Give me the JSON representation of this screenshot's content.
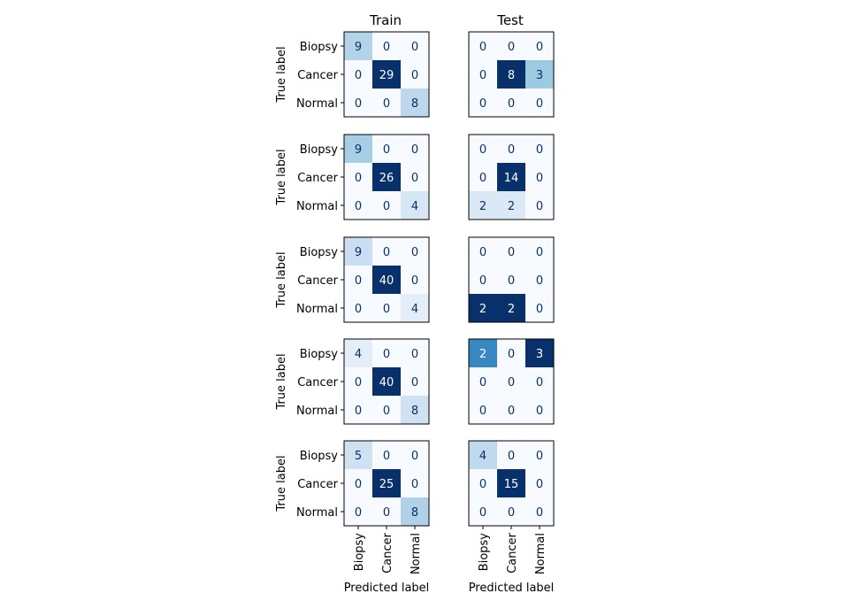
{
  "columns": [
    {
      "title": "Train"
    },
    {
      "title": "Test"
    }
  ],
  "class_labels": [
    "Biopsy",
    "Cancer",
    "Normal"
  ],
  "ylabel": "True label",
  "xlabel": "Predicted label",
  "chart_data": [
    {
      "type": "heatmap",
      "title": "Train",
      "row": 1,
      "x_categories": [
        "Biopsy",
        "Cancer",
        "Normal"
      ],
      "y_categories": [
        "Biopsy",
        "Cancer",
        "Normal"
      ],
      "values": [
        [
          9,
          0,
          0
        ],
        [
          0,
          29,
          0
        ],
        [
          0,
          0,
          8
        ]
      ],
      "colormap": "Blues"
    },
    {
      "type": "heatmap",
      "title": "Test",
      "row": 1,
      "x_categories": [
        "Biopsy",
        "Cancer",
        "Normal"
      ],
      "y_categories": [
        "Biopsy",
        "Cancer",
        "Normal"
      ],
      "values": [
        [
          0,
          0,
          0
        ],
        [
          0,
          8,
          3
        ],
        [
          0,
          0,
          0
        ]
      ],
      "colormap": "Blues"
    },
    {
      "type": "heatmap",
      "title": "Train",
      "row": 2,
      "x_categories": [
        "Biopsy",
        "Cancer",
        "Normal"
      ],
      "y_categories": [
        "Biopsy",
        "Cancer",
        "Normal"
      ],
      "values": [
        [
          9,
          0,
          0
        ],
        [
          0,
          26,
          0
        ],
        [
          0,
          0,
          4
        ]
      ],
      "colormap": "Blues"
    },
    {
      "type": "heatmap",
      "title": "Test",
      "row": 2,
      "x_categories": [
        "Biopsy",
        "Cancer",
        "Normal"
      ],
      "y_categories": [
        "Biopsy",
        "Cancer",
        "Normal"
      ],
      "values": [
        [
          0,
          0,
          0
        ],
        [
          0,
          14,
          0
        ],
        [
          2,
          2,
          0
        ]
      ],
      "colormap": "Blues"
    },
    {
      "type": "heatmap",
      "title": "Train",
      "row": 3,
      "x_categories": [
        "Biopsy",
        "Cancer",
        "Normal"
      ],
      "y_categories": [
        "Biopsy",
        "Cancer",
        "Normal"
      ],
      "values": [
        [
          9,
          0,
          0
        ],
        [
          0,
          40,
          0
        ],
        [
          0,
          0,
          4
        ]
      ],
      "colormap": "Blues"
    },
    {
      "type": "heatmap",
      "title": "Test",
      "row": 3,
      "x_categories": [
        "Biopsy",
        "Cancer",
        "Normal"
      ],
      "y_categories": [
        "Biopsy",
        "Cancer",
        "Normal"
      ],
      "values": [
        [
          0,
          0,
          0
        ],
        [
          0,
          0,
          0
        ],
        [
          2,
          2,
          0
        ]
      ],
      "colormap": "Blues"
    },
    {
      "type": "heatmap",
      "title": "Train",
      "row": 4,
      "x_categories": [
        "Biopsy",
        "Cancer",
        "Normal"
      ],
      "y_categories": [
        "Biopsy",
        "Cancer",
        "Normal"
      ],
      "values": [
        [
          4,
          0,
          0
        ],
        [
          0,
          40,
          0
        ],
        [
          0,
          0,
          8
        ]
      ],
      "colormap": "Blues"
    },
    {
      "type": "heatmap",
      "title": "Test",
      "row": 4,
      "x_categories": [
        "Biopsy",
        "Cancer",
        "Normal"
      ],
      "y_categories": [
        "Biopsy",
        "Cancer",
        "Normal"
      ],
      "values": [
        [
          2,
          0,
          3
        ],
        [
          0,
          0,
          0
        ],
        [
          0,
          0,
          0
        ]
      ],
      "colormap": "Blues"
    },
    {
      "type": "heatmap",
      "title": "Train",
      "row": 5,
      "x_categories": [
        "Biopsy",
        "Cancer",
        "Normal"
      ],
      "y_categories": [
        "Biopsy",
        "Cancer",
        "Normal"
      ],
      "values": [
        [
          5,
          0,
          0
        ],
        [
          0,
          25,
          0
        ],
        [
          0,
          0,
          8
        ]
      ],
      "colormap": "Blues"
    },
    {
      "type": "heatmap",
      "title": "Test",
      "row": 5,
      "x_categories": [
        "Biopsy",
        "Cancer",
        "Normal"
      ],
      "y_categories": [
        "Biopsy",
        "Cancer",
        "Normal"
      ],
      "values": [
        [
          4,
          0,
          0
        ],
        [
          0,
          15,
          0
        ],
        [
          0,
          0,
          0
        ]
      ],
      "colormap": "Blues"
    }
  ]
}
